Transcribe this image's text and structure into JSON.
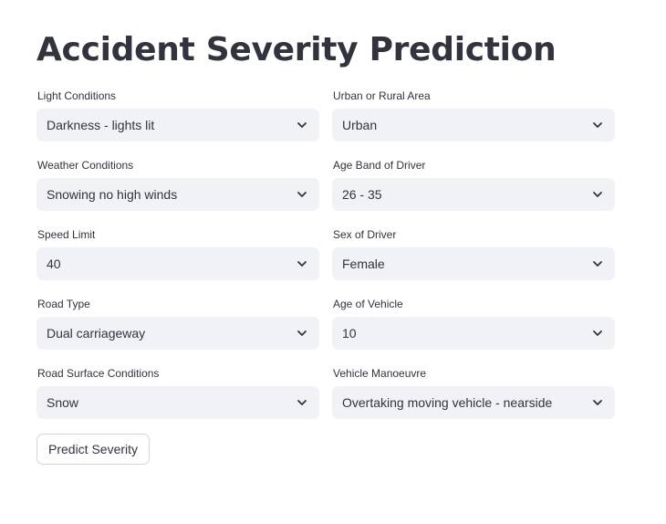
{
  "page": {
    "title": "Accident Severity Prediction"
  },
  "form": {
    "fields": [
      {
        "label": "Light Conditions",
        "value": "Darkness - lights lit"
      },
      {
        "label": "Urban or Rural Area",
        "value": "Urban"
      },
      {
        "label": "Weather Conditions",
        "value": "Snowing no high winds"
      },
      {
        "label": "Age Band of Driver",
        "value": "26 - 35"
      },
      {
        "label": "Speed Limit",
        "value": "40"
      },
      {
        "label": "Sex of Driver",
        "value": "Female"
      },
      {
        "label": "Road Type",
        "value": "Dual carriageway"
      },
      {
        "label": "Age of Vehicle",
        "value": "10"
      },
      {
        "label": "Road Surface Conditions",
        "value": "Snow"
      },
      {
        "label": "Vehicle Manoeuvre",
        "value": "Overtaking moving vehicle - nearside"
      }
    ],
    "select_icon": "chevron-down-icon",
    "submit_label": "Predict Severity"
  },
  "colors": {
    "text": "#31333f",
    "select_background": "#f0f2f6",
    "button_border": "#d3d5da",
    "background": "#ffffff"
  }
}
